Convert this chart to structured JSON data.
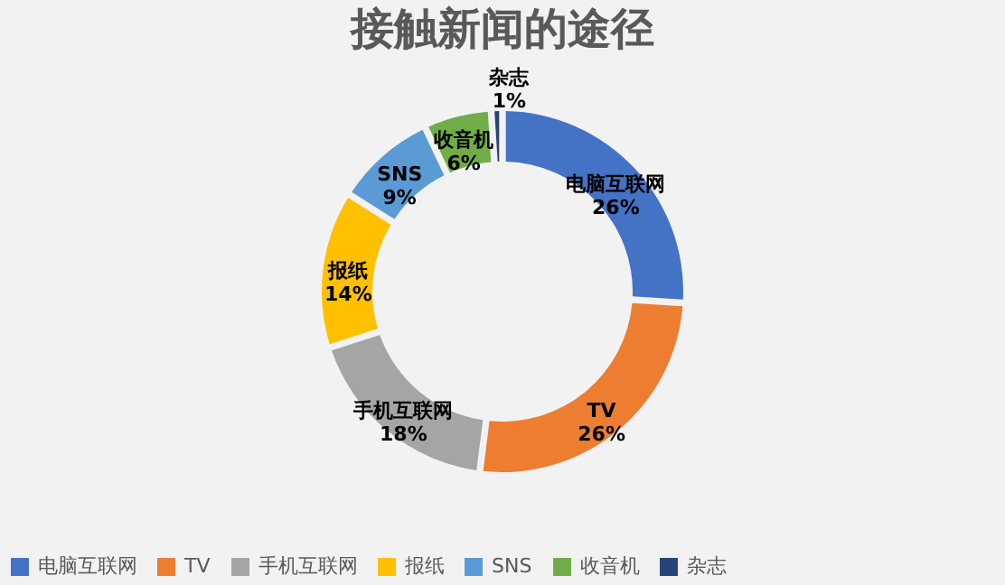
{
  "chart_data": {
    "type": "donut",
    "title": "接触新闻的途径",
    "categories": [
      "电脑互联网",
      "TV",
      "手机互联网",
      "报纸",
      "SNS",
      "收音机",
      "杂志"
    ],
    "values": [
      26,
      26,
      18,
      14,
      9,
      6,
      1
    ],
    "value_labels": [
      "26%",
      "26%",
      "18%",
      "14%",
      "9%",
      "6%",
      "1%"
    ],
    "colors": [
      "#4472c4",
      "#ed7d31",
      "#a5a5a5",
      "#ffc000",
      "#5b9bd5",
      "#70ad47",
      "#264478"
    ],
    "legend": "bottom"
  }
}
